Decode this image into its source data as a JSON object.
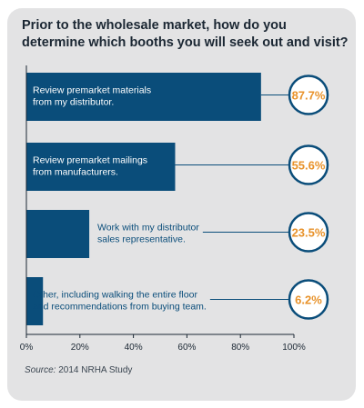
{
  "chart_data": {
    "type": "bar",
    "orientation": "horizontal",
    "title": "Prior to the wholesale market, how do you determine which booths you will seek out and visit?",
    "categories": [
      [
        "Review premarket materials",
        "from my distributor."
      ],
      [
        "Review premarket mailings",
        "from manufacturers."
      ],
      [
        "Work with my distributor",
        "sales representative."
      ],
      [
        "Other, including walking the entire floor",
        "and recommendations from buying team."
      ]
    ],
    "values": [
      87.7,
      55.6,
      23.5,
      6.2
    ],
    "value_labels": [
      "87.7%",
      "55.6%",
      "23.5%",
      "6.2%"
    ],
    "x_ticks": [
      "0%",
      "20%",
      "40%",
      "60%",
      "80%",
      "100%"
    ],
    "xlim": [
      0,
      100
    ],
    "bar_color": "#0a4d7a",
    "callout_text_color": "#e8922a",
    "callout_border_color": "#0a4d7a"
  },
  "source": {
    "label": "Source:",
    "text": " 2014 NRHA Study"
  }
}
